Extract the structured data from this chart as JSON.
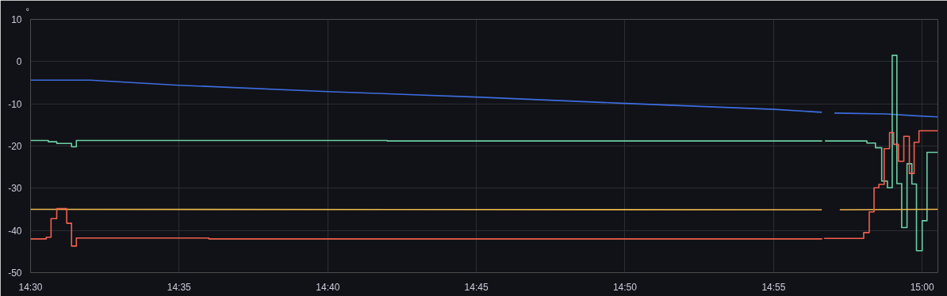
{
  "chart_data": {
    "type": "line",
    "ylabel": "°",
    "xlim": [
      14.5,
      15.0088
    ],
    "ylim": [
      -50,
      10
    ],
    "xticks": [
      {
        "value": 14.5,
        "label": "14:30"
      },
      {
        "value": 14.5833,
        "label": "14:35"
      },
      {
        "value": 14.6667,
        "label": "14:40"
      },
      {
        "value": 14.75,
        "label": "14:45"
      },
      {
        "value": 14.8333,
        "label": "14:50"
      },
      {
        "value": 14.9167,
        "label": "14:55"
      },
      {
        "value": 15.0,
        "label": "15:00"
      }
    ],
    "yticks": [
      -50,
      -40,
      -30,
      -20,
      -10,
      0,
      10
    ],
    "grid": true,
    "series": [
      {
        "color": "#3d6ee0",
        "x": [
          14.5,
          14.5333,
          14.5833,
          14.6667,
          14.75,
          14.8333,
          14.9167,
          14.9437,
          14.944,
          14.9508,
          14.98,
          14.995,
          15.0088
        ],
        "values": [
          -4.4,
          -4.4,
          -5.6,
          -7.1,
          -8.4,
          -9.9,
          -11.3,
          -12.0,
          null,
          -12.2,
          -12.4,
          -12.8,
          -13.1
        ]
      },
      {
        "type": "step",
        "color": "#6ccfa5",
        "x": [
          14.5,
          14.51,
          14.5147,
          14.523,
          14.5257,
          14.7,
          14.9437,
          14.9443,
          14.9455,
          14.969,
          14.9738,
          14.9773,
          14.9805,
          14.9832,
          14.9858,
          14.9885,
          14.9915,
          14.9942,
          14.9968,
          15.0,
          15.0027,
          15.0088
        ],
        "values": [
          -18.7,
          -19.0,
          -19.4,
          -20.2,
          -18.7,
          -18.8,
          -18.7,
          null,
          -18.8,
          -19.3,
          -20.4,
          -28.3,
          -29.9,
          1.5,
          -28.9,
          -39.3,
          -24.2,
          -29.0,
          -44.8,
          -37.7,
          -21.5,
          -21.5
        ]
      },
      {
        "color": "#eab74f",
        "x": [
          14.5,
          14.9437,
          14.944,
          14.9538,
          15.0088
        ],
        "values": [
          -35.0,
          -35.1,
          null,
          -35.1,
          -35.0
        ]
      },
      {
        "type": "step",
        "color": "#f0604e",
        "x": [
          14.5,
          14.5088,
          14.5115,
          14.5147,
          14.5203,
          14.523,
          14.5257,
          14.6,
          14.8,
          14.9437,
          14.9443,
          14.945,
          14.9672,
          14.9703,
          14.973,
          14.9757,
          14.9787,
          14.9817,
          14.984,
          14.9867,
          14.9897,
          14.9928,
          14.9955,
          14.9982,
          15.0088
        ],
        "values": [
          -42.0,
          -41.6,
          -37.2,
          -34.8,
          -38.3,
          -43.7,
          -41.8,
          -42.0,
          -42.0,
          -41.9,
          null,
          -41.9,
          -40.5,
          -35.6,
          -29.9,
          -29.1,
          -20.6,
          -16.8,
          -19.6,
          -23.6,
          -17.7,
          -26.5,
          -19.1,
          -16.4,
          -16.4
        ]
      }
    ]
  }
}
